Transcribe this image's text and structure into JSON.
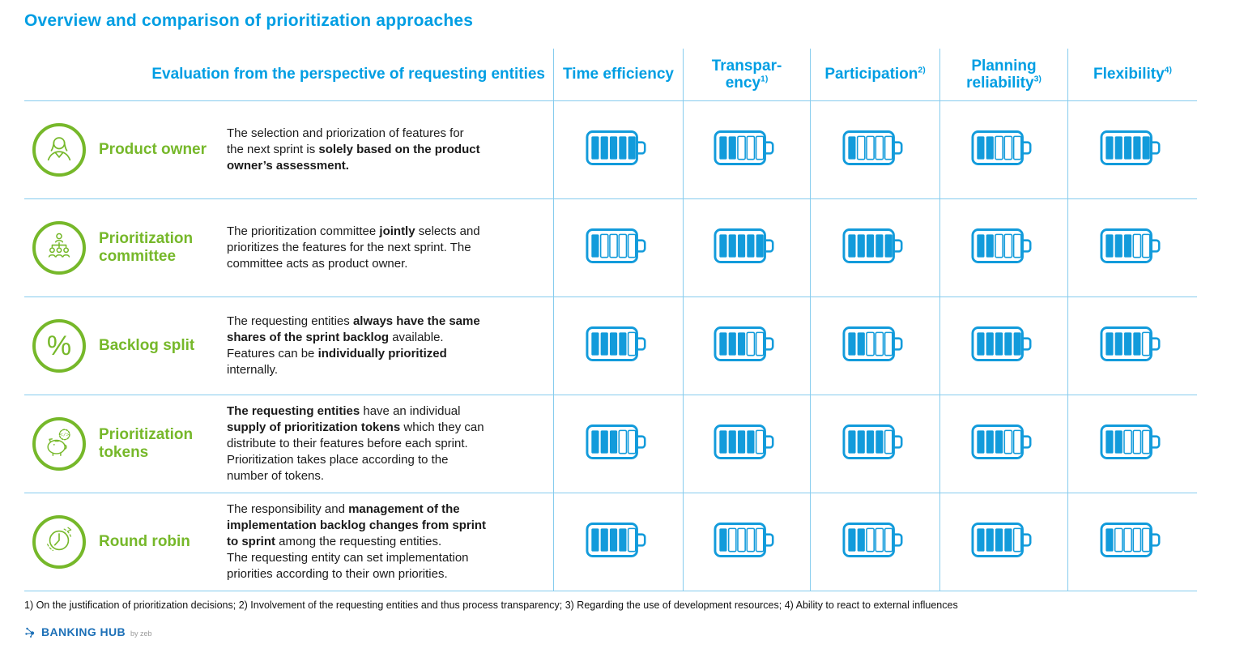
{
  "title": "Overview and comparison of prioritization approaches",
  "colors": {
    "accent_blue": "#009EE3",
    "battery_blue": "#129BDB",
    "green": "#76B82A",
    "grid_line": "#86CCEE",
    "text": "#1A1A1A",
    "logo_blue": "#1D70B7",
    "byline_gray": "#9A9A9A"
  },
  "table": {
    "eval_header": "Evaluation from the perspective of requesting entities",
    "rating_max": 5,
    "columns": [
      {
        "label": "Time efficiency",
        "sup": ""
      },
      {
        "label": "Transpar-\nency",
        "sup": "1)"
      },
      {
        "label": "Participation",
        "sup": "2)"
      },
      {
        "label": "Planning\nreliability",
        "sup": "3)"
      },
      {
        "label": "Flexibility",
        "sup": "4)"
      }
    ],
    "rows": [
      {
        "icon": "person-icon",
        "name": "Product owner",
        "description": [
          {
            "text": "The selection and priorization of features for\nthe next sprint is ",
            "bold": false
          },
          {
            "text": "solely based on the product\nowner’s assessment.",
            "bold": true
          }
        ],
        "ratings": [
          5,
          2,
          1,
          2,
          5
        ]
      },
      {
        "icon": "org-chart-icon",
        "name": "Prioritization committee",
        "description": [
          {
            "text": "The prioritization committee ",
            "bold": false
          },
          {
            "text": "jointly",
            "bold": true
          },
          {
            "text": " selects and\nprioritizes the features for the next sprint. The\ncommittee acts as product owner.",
            "bold": false
          }
        ],
        "ratings": [
          1,
          5,
          5,
          2,
          3
        ]
      },
      {
        "icon": "percent-icon",
        "name": "Backlog split",
        "description": [
          {
            "text": "The requesting entities ",
            "bold": false
          },
          {
            "text": "always have the same\nshares of the sprint backlog",
            "bold": true
          },
          {
            "text": " available.\nFeatures can be ",
            "bold": false
          },
          {
            "text": "individually prioritized",
            "bold": true
          },
          {
            "text": "\ninternally.",
            "bold": false
          }
        ],
        "ratings": [
          4,
          3,
          2,
          5,
          4
        ]
      },
      {
        "icon": "piggy-bank-icon",
        "name": "Prioritization tokens",
        "description": [
          {
            "text": "The requesting entities",
            "bold": true
          },
          {
            "text": " have an individual\n",
            "bold": false
          },
          {
            "text": "supply of prioritization tokens",
            "bold": true
          },
          {
            "text": " which they can\ndistribute to their features before each sprint.\nPrioritization takes place according to the\nnumber of tokens.",
            "bold": false
          }
        ],
        "ratings": [
          3,
          4,
          4,
          3,
          2
        ]
      },
      {
        "icon": "clock-icon",
        "name": "Round robin",
        "description": [
          {
            "text": "The responsibility and ",
            "bold": false
          },
          {
            "text": "management of the\nimplementation backlog changes from sprint\nto sprint",
            "bold": true
          },
          {
            "text": " among the requesting entities.\nThe requesting entity can set implementation\npriorities according to their own priorities.",
            "bold": false
          }
        ],
        "ratings": [
          4,
          1,
          2,
          4,
          1
        ]
      }
    ]
  },
  "footnote": "1) On the justification of prioritization decisions; 2) Involvement of the requesting entities and thus process transparency; 3) Regarding the use of development resources; 4) Ability to react to external influences",
  "footer_logo": {
    "brand_regular": "BANKING",
    "brand_bold": "HUB",
    "byline": "by zeb"
  }
}
